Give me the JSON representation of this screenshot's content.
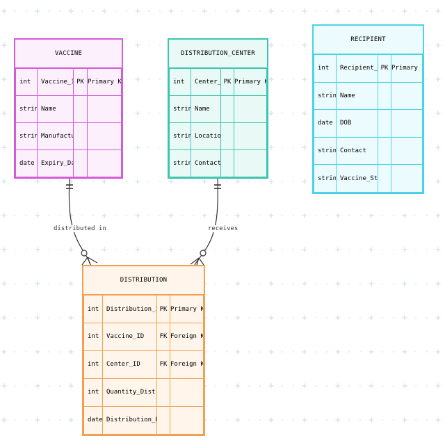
{
  "colors": {
    "background": "#ffffff",
    "grid_mark": "#d8e6ee",
    "line": "#333333"
  },
  "entities": {
    "vaccine": {
      "title": "VACCINE",
      "border": "#d45bd8",
      "fill": "#fdf0fd",
      "rows": [
        {
          "type": "int",
          "name": "Vaccine_ID",
          "key": "PK",
          "comment": "Primary Key"
        },
        {
          "type": "string",
          "name": "Name",
          "key": "",
          "comment": ""
        },
        {
          "type": "string",
          "name": "Manufacturer",
          "key": "",
          "comment": ""
        },
        {
          "type": "date",
          "name": "Expiry_Date",
          "key": "",
          "comment": ""
        }
      ]
    },
    "distribution_center": {
      "title": "DISTRIBUTION_CENTER",
      "border": "#3cc4b0",
      "fill": "#e9faf6",
      "rows": [
        {
          "type": "int",
          "name": "Center_ID",
          "key": "PK",
          "comment": "Primary Key"
        },
        {
          "type": "string",
          "name": "Name",
          "key": "",
          "comment": ""
        },
        {
          "type": "string",
          "name": "Location",
          "key": "",
          "comment": ""
        },
        {
          "type": "string",
          "name": "Contact",
          "key": "",
          "comment": ""
        }
      ]
    },
    "recipient": {
      "title": "RECIPIENT",
      "border": "#4cd2e6",
      "fill": "#ecfbfd",
      "rows": [
        {
          "type": "int",
          "name": "Recipient_ID",
          "key": "PK",
          "comment": "Primary Key"
        },
        {
          "type": "string",
          "name": "Name",
          "key": "",
          "comment": ""
        },
        {
          "type": "date",
          "name": "DOB",
          "key": "",
          "comment": ""
        },
        {
          "type": "string",
          "name": "Contact",
          "key": "",
          "comment": ""
        },
        {
          "type": "string",
          "name": "Vaccine_Status",
          "key": "",
          "comment": ""
        }
      ]
    },
    "distribution": {
      "title": "DISTRIBUTION",
      "border": "#f0a050",
      "fill": "#fff5ea",
      "rows": [
        {
          "type": "int",
          "name": "Distribution_ID",
          "key": "PK",
          "comment": "Primary Key"
        },
        {
          "type": "int",
          "name": "Vaccine_ID",
          "key": "FK",
          "comment": "Foreign Key"
        },
        {
          "type": "int",
          "name": "Center_ID",
          "key": "FK",
          "comment": "Foreign Key"
        },
        {
          "type": "int",
          "name": "Quantity_Distributed",
          "key": "",
          "comment": ""
        },
        {
          "type": "date",
          "name": "Distribution_Date",
          "key": "",
          "comment": ""
        }
      ]
    }
  },
  "relationships": [
    {
      "from": "vaccine",
      "to": "distribution",
      "label": "distributed in",
      "from_card": "one-and-only-one",
      "to_card": "zero-or-many"
    },
    {
      "from": "distribution_center",
      "to": "distribution",
      "label": "receives",
      "from_card": "one-and-only-one",
      "to_card": "zero-or-many"
    }
  ]
}
